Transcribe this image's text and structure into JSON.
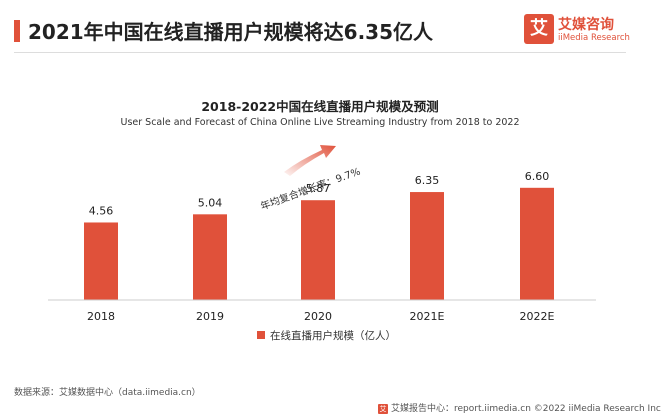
{
  "header": {
    "title": "2021年中国在线直播用户规模将达6.35亿人",
    "logo_mark": "艾",
    "logo_cn": "艾媒咨询",
    "logo_en": "iiMedia Research"
  },
  "colors": {
    "accent": "#e0513a",
    "text": "#222222"
  },
  "chart_data": {
    "type": "bar",
    "title": "2018-2022中国在线直播用户规模及预测",
    "subtitle": "User Scale and Forecast of China Online Live Streaming Industry from 2018 to 2022",
    "categories": [
      "2018",
      "2019",
      "2020",
      "2021E",
      "2022E"
    ],
    "values": [
      4.56,
      5.04,
      5.87,
      6.35,
      6.6
    ],
    "value_labels": [
      "4.56",
      "5.04",
      "5.87",
      "6.35",
      "6.60"
    ],
    "series_name": "在线直播用户规模（亿人）",
    "annotation": "年均复合增长率：9.7%",
    "ylim": [
      0,
      12
    ],
    "grid": false,
    "legend": "bottom-center"
  },
  "footer": {
    "source": "数据来源：艾媒数据中心（data.iimedia.cn）",
    "report_mark": "艾",
    "report": "艾媒报告中心：report.iimedia.cn ©2022 iiMedia Research Inc"
  }
}
